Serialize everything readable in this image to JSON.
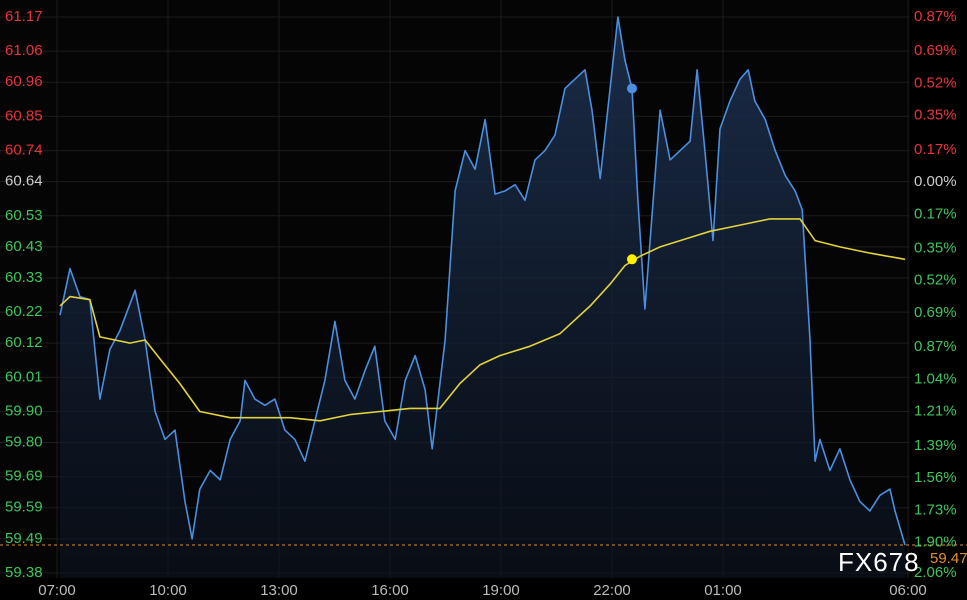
{
  "chart_data": {
    "type": "line",
    "xlim": [
      0,
      23
    ],
    "xticks": [
      {
        "value": 0,
        "label": "07:00"
      },
      {
        "value": 3,
        "label": "10:00"
      },
      {
        "value": 6,
        "label": "13:00"
      },
      {
        "value": 9,
        "label": "16:00"
      },
      {
        "value": 12,
        "label": "19:00"
      },
      {
        "value": 15,
        "label": "22:00"
      },
      {
        "value": 18,
        "label": "01:00"
      },
      {
        "value": 23,
        "label": "06:00"
      }
    ],
    "ylim": [
      59.38,
      61.17
    ],
    "yticks": [
      61.17,
      61.06,
      60.96,
      60.85,
      60.74,
      60.64,
      60.53,
      60.43,
      60.33,
      60.22,
      60.12,
      60.01,
      {
        "value": 59.9,
        "label": "59.90"
      },
      {
        "value": 59.8,
        "label": "59.80"
      },
      59.69,
      59.59,
      59.49,
      59.38
    ],
    "y2lim": [
      -2.06,
      0.87
    ],
    "y2ticks": [
      {
        "value": 0.87,
        "label": "0.87%"
      },
      {
        "value": 0.69,
        "label": "0.69%"
      },
      {
        "value": 0.52,
        "label": "0.52%"
      },
      {
        "value": 0.35,
        "label": "0.35%"
      },
      {
        "value": 0.17,
        "label": "0.17%"
      },
      {
        "value": 0,
        "label": "0.00%"
      },
      {
        "value": -0.17,
        "label": "0.17%"
      },
      {
        "value": -0.35,
        "label": "0.35%"
      },
      {
        "value": -0.52,
        "label": "0.52%"
      },
      {
        "value": -0.69,
        "label": "0.69%"
      },
      {
        "value": -0.87,
        "label": "0.87%"
      },
      {
        "value": -1.04,
        "label": "1.04%"
      },
      {
        "value": -1.21,
        "label": "1.21%"
      },
      {
        "value": -1.39,
        "label": "1.39%"
      },
      {
        "value": -1.56,
        "label": "1.56%"
      },
      {
        "value": -1.73,
        "label": "1.73%"
      },
      {
        "value": -1.9,
        "label": "1.90%"
      },
      {
        "value": -2.06,
        "label": "2.06%"
      }
    ],
    "grid": true,
    "up_color": "#e8333b",
    "flat_color": "#cccccc",
    "down_color": "#3fc45a",
    "series": [
      {
        "color": "#4a8fe0",
        "area": true,
        "x": [
          0.08,
          0.35,
          0.62,
          0.89,
          1.16,
          1.43,
          1.7,
          2.11,
          2.38,
          2.65,
          2.92,
          3.19,
          3.46,
          3.65,
          3.86,
          4.14,
          4.41,
          4.68,
          4.95,
          5.08,
          5.35,
          5.62,
          5.89,
          6.16,
          6.43,
          6.7,
          6.97,
          7.24,
          7.51,
          7.78,
          8.05,
          8.32,
          8.59,
          8.86,
          9.14,
          9.41,
          9.68,
          9.95,
          10.14,
          10.3,
          10.49,
          10.76,
          11.03,
          11.3,
          11.57,
          11.84,
          12.11,
          12.38,
          12.65,
          12.92,
          13.19,
          13.46,
          13.73,
          14.0,
          14.27,
          14.46,
          14.68,
          14.95,
          15.16,
          15.35,
          15.54,
          15.7,
          15.89,
          16.03,
          16.3,
          16.57,
          16.84,
          17.11,
          17.3,
          17.51,
          17.73,
          17.92,
          18.19,
          18.46,
          18.68,
          18.86,
          19.14,
          19.41,
          19.68,
          19.95,
          20.14,
          20.35,
          20.49,
          20.62,
          20.89,
          21.16,
          21.43,
          21.7,
          21.97,
          22.24,
          22.51,
          22.65,
          22.92
        ],
        "values": [
          60.21,
          60.36,
          60.27,
          60.26,
          59.94,
          60.1,
          60.16,
          60.29,
          60.13,
          59.9,
          59.81,
          59.84,
          59.61,
          59.49,
          59.65,
          59.71,
          59.68,
          59.81,
          59.87,
          60.0,
          59.94,
          59.92,
          59.94,
          59.84,
          59.81,
          59.74,
          59.87,
          60.0,
          60.19,
          60.0,
          59.94,
          60.03,
          60.11,
          59.87,
          59.81,
          60.0,
          60.08,
          59.97,
          59.78,
          59.94,
          60.13,
          60.61,
          60.74,
          60.68,
          60.84,
          60.6,
          60.61,
          60.63,
          60.58,
          60.71,
          60.74,
          60.79,
          60.94,
          60.97,
          61.0,
          60.87,
          60.65,
          60.94,
          61.17,
          61.03,
          60.94,
          60.58,
          60.23,
          60.45,
          60.87,
          60.71,
          60.74,
          60.77,
          61.0,
          60.74,
          60.45,
          60.81,
          60.9,
          60.97,
          61.0,
          60.9,
          60.84,
          60.74,
          60.66,
          60.61,
          60.55,
          60.13,
          59.74,
          59.81,
          59.71,
          59.78,
          59.68,
          59.61,
          59.58,
          59.63,
          59.65,
          59.58,
          59.47
        ]
      },
      {
        "color": "#e3d33a",
        "x": [
          0.08,
          0.35,
          0.89,
          1.16,
          1.97,
          2.38,
          2.78,
          3.32,
          3.86,
          4.68,
          5.49,
          6.3,
          7.11,
          7.92,
          8.73,
          9.54,
          10.35,
          10.89,
          11.43,
          11.97,
          12.78,
          13.59,
          14.41,
          14.95,
          15.35,
          15.76,
          16.3,
          17.11,
          17.65,
          18.46,
          19.27,
          20.08,
          20.49,
          21.16,
          21.97,
          22.92
        ],
        "values": [
          60.24,
          60.27,
          60.26,
          60.14,
          60.12,
          60.13,
          60.07,
          59.99,
          59.9,
          59.88,
          59.88,
          59.88,
          59.87,
          59.89,
          59.9,
          59.91,
          59.91,
          59.99,
          60.05,
          60.08,
          60.11,
          60.15,
          60.24,
          60.31,
          60.37,
          60.4,
          60.43,
          60.46,
          60.48,
          60.5,
          60.52,
          60.52,
          60.45,
          60.43,
          60.41,
          60.39
        ]
      }
    ],
    "markers": [
      {
        "x": 15.54,
        "y": 60.94,
        "color": "#4a8fe0"
      },
      {
        "x": 15.54,
        "y": 60.39,
        "color": "#ffee00"
      }
    ],
    "last_price": {
      "value": 59.47,
      "label": "59.47",
      "color": "#e0902a"
    },
    "watermark": "FX678"
  }
}
